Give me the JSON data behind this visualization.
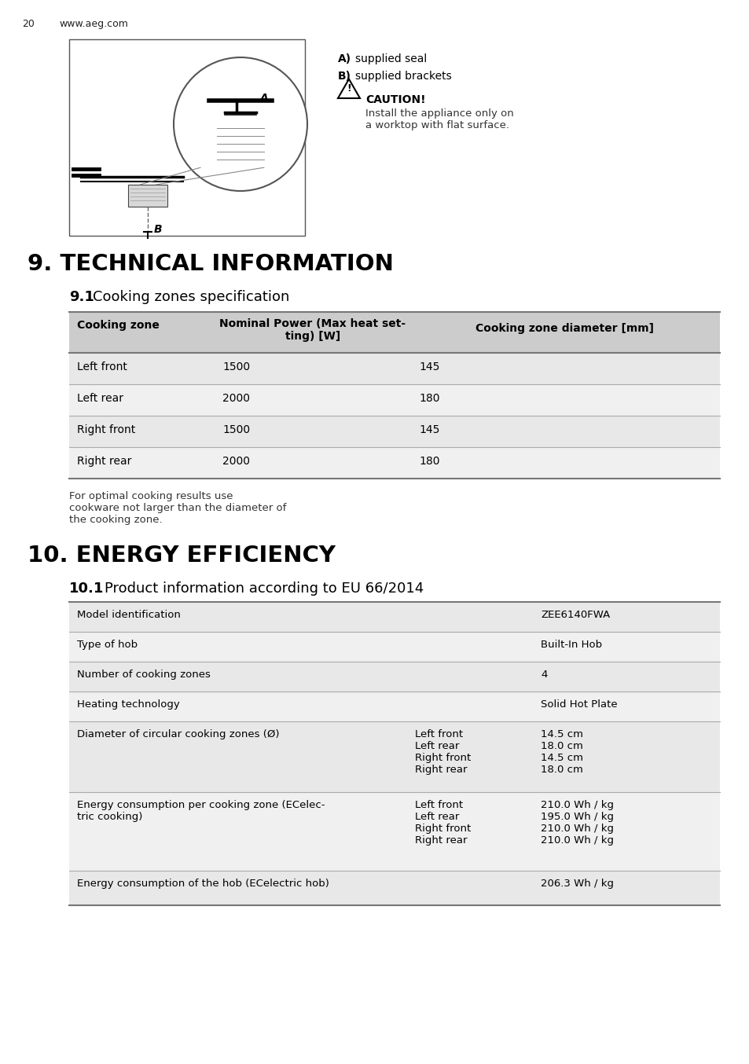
{
  "page_num": "20",
  "website": "www.aeg.com",
  "label_a": "supplied seal",
  "label_b": "supplied brackets",
  "caution_title": "CAUTION!",
  "caution_text": "Install the appliance only on\na worktop with flat surface.",
  "section9_title": "9. TECHNICAL INFORMATION",
  "section91_bold": "9.1",
  "section91_text": " Cooking zones specification",
  "table1_header_col1": "Cooking zone",
  "table1_header_col2": "Nominal Power (Max heat set-\nting) [W]",
  "table1_header_col3": "Cooking zone diameter [mm]",
  "table1_rows": [
    [
      "Left front",
      "1500",
      "145"
    ],
    [
      "Left rear",
      "2000",
      "180"
    ],
    [
      "Right front",
      "1500",
      "145"
    ],
    [
      "Right rear",
      "2000",
      "180"
    ]
  ],
  "footnote": "For optimal cooking results use\ncookware not larger than the diameter of\nthe cooking zone.",
  "section10_title": "10. ENERGY EFFICIENCY",
  "section101_bold": "10.1",
  "section101_text": " Product information according to EU 66/2014",
  "table2_rows": [
    [
      "Model identification",
      "",
      "ZEE6140FWA"
    ],
    [
      "Type of hob",
      "",
      "Built-In Hob"
    ],
    [
      "Number of cooking zones",
      "",
      "4"
    ],
    [
      "Heating technology",
      "",
      "Solid Hot Plate"
    ],
    [
      "Diameter of circular cooking zones (Ø)",
      "Left front\nLeft rear\nRight front\nRight rear",
      "14.5 cm\n18.0 cm\n14.5 cm\n18.0 cm"
    ],
    [
      "Energy consumption per cooking zone (ECelec-\ntric cooking)",
      "Left front\nLeft rear\nRight front\nRight rear",
      "210.0 Wh / kg\n195.0 Wh / kg\n210.0 Wh / kg\n210.0 Wh / kg"
    ],
    [
      "Energy consumption of the hob (ECelectric hob)",
      "",
      "206.3 Wh / kg"
    ]
  ],
  "bg_color": "#ffffff",
  "table_header_bg": "#cccccc",
  "table_row_even_bg": "#e8e8e8",
  "table_row_odd_bg": "#f0f0f0",
  "border_dark": "#777777",
  "border_light": "#aaaaaa"
}
